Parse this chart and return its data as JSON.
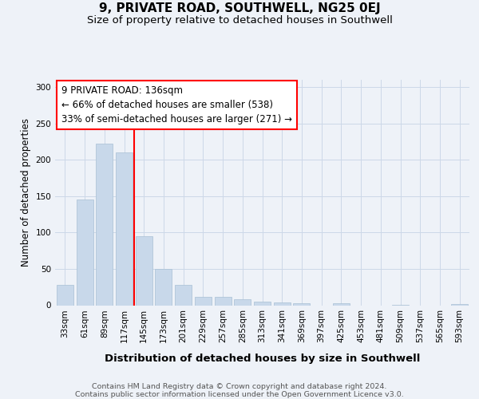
{
  "title": "9, PRIVATE ROAD, SOUTHWELL, NG25 0EJ",
  "subtitle": "Size of property relative to detached houses in Southwell",
  "xlabel": "Distribution of detached houses by size in Southwell",
  "ylabel": "Number of detached properties",
  "footnote": "Contains HM Land Registry data © Crown copyright and database right 2024.\nContains public sector information licensed under the Open Government Licence v3.0.",
  "bar_labels": [
    "33sqm",
    "61sqm",
    "89sqm",
    "117sqm",
    "145sqm",
    "173sqm",
    "201sqm",
    "229sqm",
    "257sqm",
    "285sqm",
    "313sqm",
    "341sqm",
    "369sqm",
    "397sqm",
    "425sqm",
    "453sqm",
    "481sqm",
    "509sqm",
    "537sqm",
    "565sqm",
    "593sqm"
  ],
  "bar_values": [
    28,
    145,
    222,
    210,
    95,
    50,
    28,
    12,
    12,
    8,
    5,
    4,
    3,
    0,
    3,
    0,
    0,
    1,
    0,
    0,
    2
  ],
  "bar_color": "#c8d8ea",
  "bar_edge_color": "#a8c0d4",
  "grid_color": "#ccd8e8",
  "bg_color": "#eef2f8",
  "plot_bg_color": "#eef2f8",
  "red_line_x": 3.5,
  "annotation_line1": "9 PRIVATE ROAD: 136sqm",
  "annotation_line2": "← 66% of detached houses are smaller (538)",
  "annotation_line3": "33% of semi-detached houses are larger (271) →",
  "ylim": [
    0,
    310
  ],
  "yticks": [
    0,
    50,
    100,
    150,
    200,
    250,
    300
  ],
  "title_fontsize": 11,
  "subtitle_fontsize": 9.5,
  "xlabel_fontsize": 9.5,
  "ylabel_fontsize": 8.5,
  "tick_fontsize": 7.5,
  "annotation_fontsize": 8.5,
  "footnote_fontsize": 6.8
}
